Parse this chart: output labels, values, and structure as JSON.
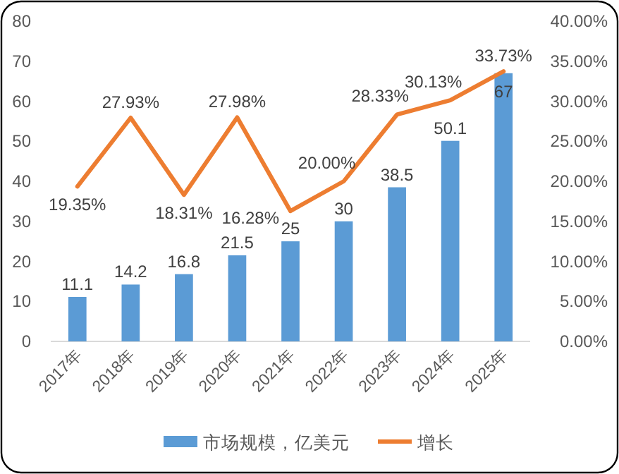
{
  "chart_data": {
    "type": "bar",
    "categories": [
      "2017年",
      "2018年",
      "2019年",
      "2020年",
      "2021年",
      "2022年",
      "2023年",
      "2024年",
      "2025年"
    ],
    "series": [
      {
        "name": "市场规模，亿美元",
        "color": "#5b9bd5",
        "values": [
          11.1,
          14.2,
          16.8,
          21.5,
          25,
          30,
          38.5,
          50.1,
          67
        ],
        "value_labels": [
          "11.1",
          "14.2",
          "16.8",
          "21.5",
          "25",
          "30",
          "38.5",
          "50.1",
          "67"
        ]
      },
      {
        "name": "增长",
        "type": "line",
        "axis": "y2",
        "color": "#ed7d31",
        "values": [
          19.35,
          27.93,
          18.31,
          27.98,
          16.28,
          20.0,
          28.33,
          30.13,
          33.73
        ],
        "value_labels": [
          "19.35%",
          "27.93%",
          "18.31%",
          "27.98%",
          "16.28%",
          "20.00%",
          "28.33%",
          "30.13%",
          "33.73%"
        ]
      }
    ],
    "ylim": [
      0,
      80
    ],
    "yticks": [
      0,
      10,
      20,
      30,
      40,
      50,
      60,
      70,
      80
    ],
    "y2lim": [
      0,
      40
    ],
    "y2ticks": [
      {
        "value": 0,
        "label": "0.00%"
      },
      {
        "value": 5,
        "label": "5.00%"
      },
      {
        "value": 10,
        "label": "10.00%"
      },
      {
        "value": 15,
        "label": "15.00%"
      },
      {
        "value": 20,
        "label": "20.00%"
      },
      {
        "value": 25,
        "label": "25.00%"
      },
      {
        "value": 30,
        "label": "30.00%"
      },
      {
        "value": 35,
        "label": "35.00%"
      },
      {
        "value": 40,
        "label": "40.00%"
      }
    ],
    "grid": false,
    "legend": "bottom"
  }
}
